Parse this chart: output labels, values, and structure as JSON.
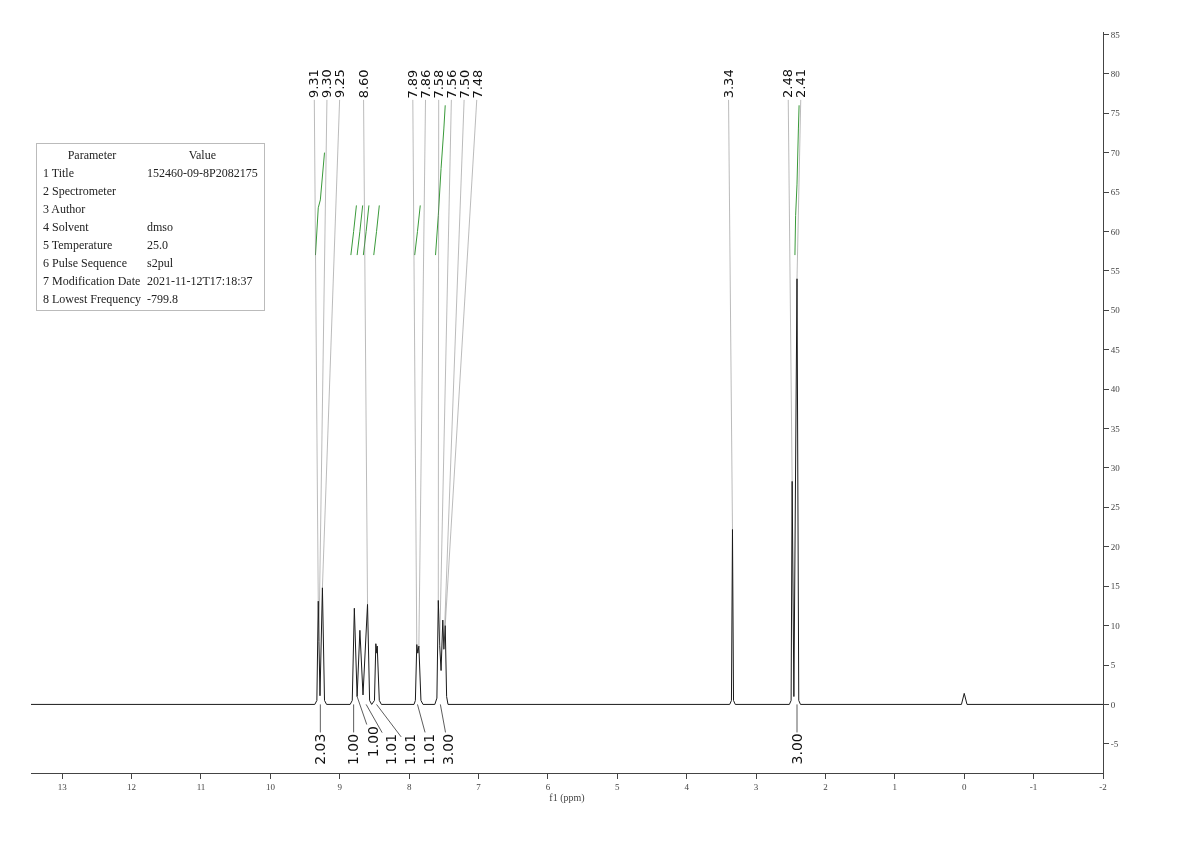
{
  "chart_data": [
    {
      "type": "line",
      "xlabel": "f1 (ppm)",
      "xlim": [
        13.45,
        -2
      ],
      "xticks": [
        13,
        12,
        11,
        10,
        9,
        8,
        7,
        6,
        5,
        4,
        3,
        2,
        1,
        0,
        -1,
        -2
      ],
      "ylim": [
        -8.7,
        85.3
      ],
      "yticks": [
        -5,
        0,
        5,
        10,
        15,
        20,
        25,
        30,
        35,
        40,
        45,
        50,
        55,
        60,
        65,
        70,
        75,
        80,
        85
      ],
      "grid": false,
      "marker": "none",
      "line_style": "solid",
      "series": [
        {
          "color": "#1a1a1a",
          "x": [
            13.45,
            9.36,
            9.33,
            9.31,
            9.3,
            9.285,
            9.25,
            9.22,
            9.19,
            8.85,
            8.82,
            8.79,
            8.75,
            8.71,
            8.665,
            8.6,
            8.57,
            8.54,
            8.5,
            8.48,
            8.465,
            8.46,
            8.43,
            8.4,
            7.93,
            7.91,
            7.89,
            7.875,
            7.86,
            7.83,
            7.8,
            7.63,
            7.6,
            7.58,
            7.56,
            7.54,
            7.515,
            7.5,
            7.48,
            7.46,
            7.44,
            3.38,
            3.355,
            3.34,
            3.325,
            3.3,
            2.52,
            2.495,
            2.48,
            2.455,
            2.41,
            2.385,
            2.36,
            0.04,
            0,
            -0.04,
            -2
          ],
          "values": [
            0,
            0,
            0.5,
            13.1,
            8,
            1.1,
            14.8,
            0.5,
            0,
            0,
            0.5,
            12.2,
            1,
            9.4,
            1.2,
            12.7,
            0.5,
            0,
            0.5,
            7.7,
            6.5,
            7.4,
            0.5,
            0,
            0,
            0.5,
            7.6,
            6.5,
            7.4,
            0.5,
            0,
            0,
            0.8,
            13.2,
            7.5,
            4.3,
            10.7,
            7,
            10,
            1,
            0,
            0,
            0.5,
            22.2,
            0.5,
            0,
            0,
            0.5,
            28.3,
            1,
            54,
            0.5,
            0,
            0,
            1.4,
            0,
            0
          ]
        },
        {
          "color": "#3a9a3a",
          "x": [
            9.35,
            9.31,
            9.28,
            9.22
          ],
          "values": [
            57,
            63,
            64,
            70
          ]
        },
        {
          "color": "#3a9a3a",
          "x": [
            8.84,
            8.8,
            8.76
          ],
          "values": [
            57,
            60,
            63.3
          ]
        },
        {
          "color": "#3a9a3a",
          "x": [
            8.75,
            8.71,
            8.67
          ],
          "values": [
            57,
            60,
            63.3
          ]
        },
        {
          "color": "#3a9a3a",
          "x": [
            8.66,
            8.62,
            8.58
          ],
          "values": [
            57,
            60,
            63.3
          ]
        },
        {
          "color": "#3a9a3a",
          "x": [
            8.51,
            8.47,
            8.43
          ],
          "values": [
            57,
            60,
            63.3
          ]
        },
        {
          "color": "#3a9a3a",
          "x": [
            7.92,
            7.88,
            7.84
          ],
          "values": [
            57,
            60,
            63.3
          ]
        },
        {
          "color": "#3a9a3a",
          "x": [
            7.62,
            7.58,
            7.54,
            7.5,
            7.48
          ],
          "values": [
            57,
            62,
            68,
            73,
            76
          ]
        },
        {
          "color": "#3a9a3a",
          "x": [
            2.44,
            2.43,
            2.41,
            2.39,
            2.38
          ],
          "values": [
            57,
            62,
            66,
            73,
            76
          ]
        }
      ],
      "annotations": [
        {
          "text": "9.31",
          "x": 9.31,
          "y": 13.1
        },
        {
          "text": "9.30",
          "x": 9.3,
          "y": 8
        },
        {
          "text": "9.25",
          "x": 9.25,
          "y": 14.8
        },
        {
          "text": "8.60",
          "x": 8.6,
          "y": 12.7
        },
        {
          "text": "7.89",
          "x": 7.89,
          "y": 7.6
        },
        {
          "text": "7.86",
          "x": 7.86,
          "y": 7.4
        },
        {
          "text": "7.58",
          "x": 7.58,
          "y": 13.2
        },
        {
          "text": "7.56",
          "x": 7.56,
          "y": 7.5
        },
        {
          "text": "7.50",
          "x": 7.5,
          "y": 7
        },
        {
          "text": "7.48",
          "x": 7.48,
          "y": 10
        },
        {
          "text": "3.34",
          "x": 3.34,
          "y": 22.2
        },
        {
          "text": "2.48",
          "x": 2.48,
          "y": 28.3
        },
        {
          "text": "2.41",
          "x": 2.41,
          "y": 54
        },
        {
          "text": "2.03",
          "x": 9.28,
          "y": 0
        },
        {
          "text": "1.00",
          "x": 8.8,
          "y": 0
        },
        {
          "text": "1.00",
          "x": 8.75,
          "y": 1
        },
        {
          "text": "1.01",
          "x": 8.62,
          "y": 0
        },
        {
          "text": "1.01",
          "x": 8.47,
          "y": 0
        },
        {
          "text": "1.01",
          "x": 7.88,
          "y": 0
        },
        {
          "text": "3.00",
          "x": 7.55,
          "y": 0
        },
        {
          "text": "3.00",
          "x": 2.41,
          "y": 0
        }
      ]
    },
    {
      "type": "other",
      "categories": [
        "Parameter",
        "Value"
      ],
      "y_categories": [
        "1 Title",
        "2 Spectrometer",
        "3 Author",
        "4 Solvent",
        "5 Temperature",
        "6 Pulse Sequence",
        "7 Modification Date",
        "8 Lowest Frequency"
      ],
      "cell_labels": [
        [
          "152460-09-8P2082175"
        ],
        [
          null
        ],
        [
          null
        ],
        [
          "dmso"
        ],
        [
          "25.0"
        ],
        [
          "s2pul"
        ],
        [
          "2021-11-12T17:18:37"
        ],
        [
          "-799.8"
        ]
      ]
    }
  ]
}
